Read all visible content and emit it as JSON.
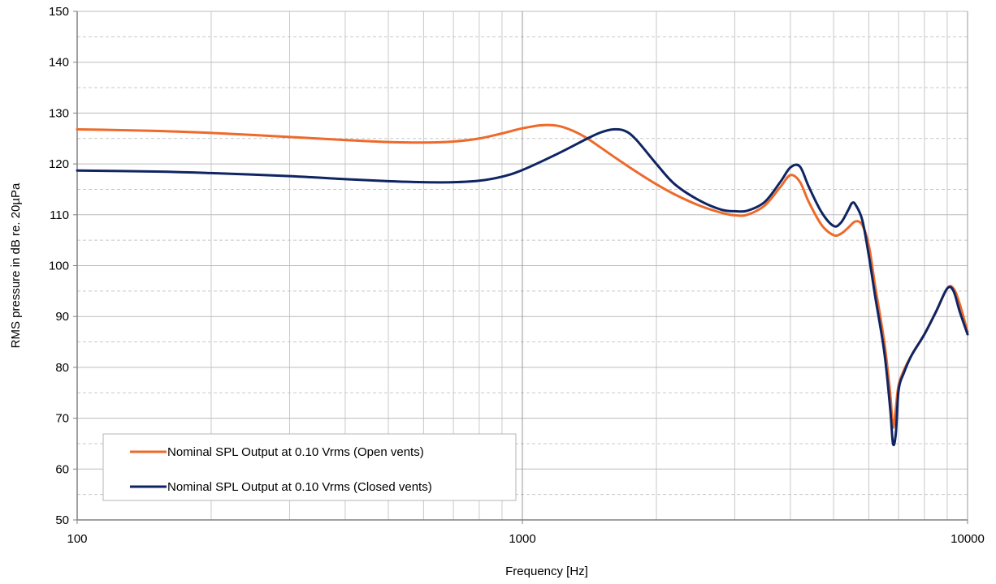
{
  "chart_data": {
    "type": "line",
    "xlabel": "Frequency [Hz]",
    "ylabel": "RMS pressure in dB re. 20µPa",
    "x_scale": "log",
    "xlim": [
      100,
      10000
    ],
    "ylim": [
      50,
      150
    ],
    "x_ticks": [
      100,
      1000,
      10000
    ],
    "x_tick_labels": [
      "100",
      "1000",
      "10000"
    ],
    "y_ticks": [
      50,
      60,
      70,
      80,
      90,
      100,
      110,
      120,
      130,
      140,
      150
    ],
    "y_tick_labels": [
      "50",
      "60",
      "70",
      "80",
      "90",
      "100",
      "110",
      "120",
      "130",
      "140",
      "150"
    ],
    "grid": true,
    "legend_position": "bottom-left",
    "series": [
      {
        "name": "Nominal SPL Output at 0.10 Vrms (Open vents)",
        "color": "#ED6A2A",
        "x": [
          100,
          150,
          200,
          300,
          400,
          500,
          600,
          700,
          800,
          900,
          1000,
          1100,
          1200,
          1300,
          1400,
          1600,
          1800,
          2000,
          2200,
          2500,
          2800,
          3000,
          3200,
          3500,
          3800,
          4000,
          4200,
          4400,
          4700,
          5000,
          5200,
          5400,
          5600,
          5800,
          6000,
          6200,
          6500,
          6700,
          6800,
          6900,
          7000,
          7200,
          7500,
          8000,
          8500,
          9000,
          9300,
          9600,
          10000
        ],
        "y": [
          126.8,
          126.5,
          126.1,
          125.3,
          124.7,
          124.3,
          124.2,
          124.4,
          125.0,
          126.0,
          127.0,
          127.6,
          127.5,
          126.5,
          125.0,
          121.5,
          118.5,
          116.0,
          114.0,
          111.8,
          110.4,
          109.9,
          110.0,
          111.8,
          115.5,
          117.8,
          116.5,
          112.5,
          108.0,
          106.0,
          106.3,
          107.5,
          108.7,
          108.0,
          104.0,
          96.0,
          85.0,
          75.0,
          68.2,
          72.0,
          76.5,
          79.5,
          82.5,
          86.5,
          91.0,
          95.5,
          95.5,
          92.5,
          87.0
        ]
      },
      {
        "name": "Nominal SPL Output at 0.10 Vrms (Closed vents)",
        "color": "#0F2563",
        "x": [
          100,
          150,
          200,
          300,
          400,
          500,
          600,
          700,
          800,
          900,
          1000,
          1200,
          1400,
          1500,
          1600,
          1700,
          1800,
          2000,
          2200,
          2500,
          2800,
          3000,
          3200,
          3500,
          3800,
          4000,
          4200,
          4400,
          4700,
          5000,
          5200,
          5400,
          5500,
          5600,
          5800,
          6000,
          6200,
          6500,
          6700,
          6800,
          6900,
          7000,
          7200,
          7500,
          8000,
          8500,
          9000,
          9300,
          9600,
          10000
        ],
        "y": [
          118.7,
          118.5,
          118.2,
          117.6,
          117.0,
          116.6,
          116.4,
          116.4,
          116.7,
          117.5,
          118.8,
          122.0,
          125.0,
          126.2,
          126.8,
          126.5,
          124.8,
          120.0,
          116.0,
          112.8,
          111.0,
          110.7,
          110.8,
          112.5,
          116.5,
          119.3,
          119.5,
          115.5,
          110.5,
          107.8,
          108.5,
          111.0,
          112.3,
          112.0,
          109.0,
          102.0,
          94.0,
          83.0,
          72.0,
          65.0,
          67.0,
          75.5,
          79.0,
          82.5,
          86.5,
          91.0,
          95.5,
          95.0,
          91.0,
          86.5
        ]
      }
    ]
  }
}
